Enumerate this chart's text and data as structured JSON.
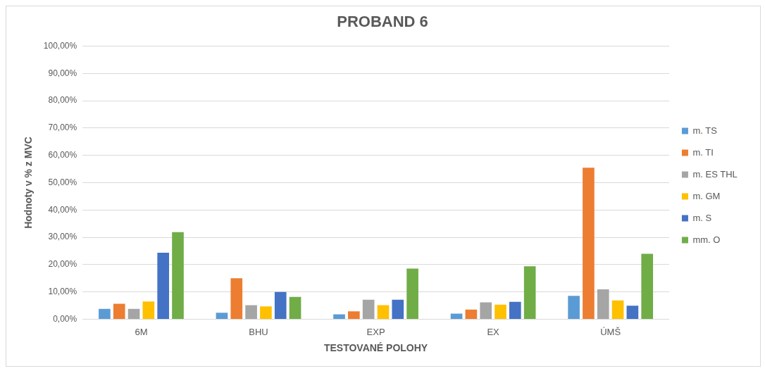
{
  "chart_data": {
    "type": "bar",
    "title": "PROBAND 6",
    "xlabel": "TESTOVANÉ POLOHY",
    "ylabel": "Hodnoty v % z MVC",
    "categories": [
      "6M",
      "BHU",
      "EXP",
      "EX",
      "ÚMŠ"
    ],
    "series": [
      {
        "name": "m. TS",
        "color": "#5b9bd5",
        "values": [
          3.8,
          2.4,
          1.8,
          2.1,
          8.6
        ]
      },
      {
        "name": "m. TI",
        "color": "#ed7d31",
        "values": [
          5.7,
          15.0,
          2.9,
          3.6,
          55.5
        ]
      },
      {
        "name": "m. ES THL",
        "color": "#a5a5a5",
        "values": [
          3.8,
          5.2,
          7.2,
          6.2,
          11.0
        ]
      },
      {
        "name": "m. GM",
        "color": "#ffc000",
        "values": [
          6.5,
          4.7,
          5.2,
          5.4,
          6.9
        ]
      },
      {
        "name": "m. S",
        "color": "#4472c4",
        "values": [
          24.4,
          10.0,
          7.2,
          6.4,
          5.0
        ]
      },
      {
        "name": "mm. O",
        "color": "#70ad47",
        "values": [
          31.9,
          8.2,
          18.6,
          19.4,
          24.0
        ]
      }
    ],
    "ylim": [
      0,
      100
    ],
    "yticks": [
      {
        "value": 0,
        "label": "0,00%"
      },
      {
        "value": 10,
        "label": "10,00%"
      },
      {
        "value": 20,
        "label": "20,00%"
      },
      {
        "value": 30,
        "label": "30,00%"
      },
      {
        "value": 40,
        "label": "40,00%"
      },
      {
        "value": 50,
        "label": "50,00%"
      },
      {
        "value": 60,
        "label": "60,00%"
      },
      {
        "value": 70,
        "label": "70,00%"
      },
      {
        "value": 80,
        "label": "80,00%"
      },
      {
        "value": 90,
        "label": "90,00%"
      },
      {
        "value": 100,
        "label": "100,00%"
      }
    ],
    "grid": "y",
    "legend": "right"
  }
}
